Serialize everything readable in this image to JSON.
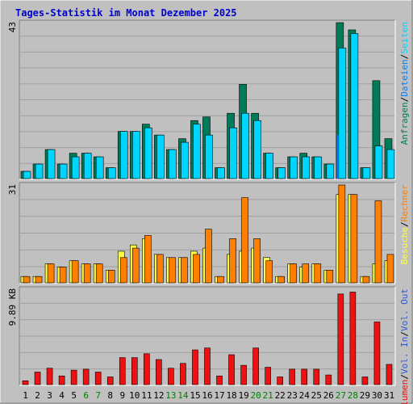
{
  "title": "Tages-Statistik im Monat Dezember 2025",
  "colors": {
    "background": "#C0C0C0",
    "panel": "#C0C0C0",
    "grid": "#A0A0A0",
    "title": "#0000CC",
    "hits": "#007B5A",
    "files": "#00D5FF",
    "pages": "#007FFF",
    "visits": "#FFFF3F",
    "sites": "#FF7F00",
    "volume": "#EE1111",
    "volin": "#2E5BD8",
    "volout": "#2E5BD8",
    "weekend": "#008000",
    "axis_text": "#000000"
  },
  "chart_data": [
    {
      "type": "bar",
      "panel": "top",
      "ymax_label": "43",
      "ylim": [
        0,
        43
      ],
      "legend": [
        {
          "label": "Anfragen",
          "color_key": "hits"
        },
        {
          "label": "/",
          "color_key": "axis_text"
        },
        {
          "label": "Dateien",
          "color_key": "pages"
        },
        {
          "label": "/",
          "color_key": "axis_text"
        },
        {
          "label": "Seiten",
          "color_key": "files"
        }
      ],
      "categories": [
        "1",
        "2",
        "3",
        "4",
        "5",
        "6",
        "7",
        "8",
        "9",
        "10",
        "11",
        "12",
        "13",
        "14",
        "15",
        "16",
        "17",
        "18",
        "19",
        "20",
        "21",
        "22",
        "23",
        "24",
        "25",
        "26",
        "27",
        "28",
        "29",
        "30",
        "31"
      ],
      "series": [
        {
          "name": "Anfragen",
          "color_key": "hits",
          "values": [
            2,
            4,
            8,
            4,
            7,
            7,
            6,
            3,
            13,
            13,
            15,
            12,
            8,
            11,
            16,
            17,
            3,
            18,
            26,
            18,
            7,
            3,
            6,
            7,
            6,
            4,
            43,
            41,
            3,
            27,
            11
          ]
        },
        {
          "name": "Dateien",
          "color_key": "files",
          "values": [
            2,
            4,
            8,
            4,
            6,
            7,
            6,
            3,
            13,
            13,
            14,
            12,
            8,
            10,
            15,
            12,
            3,
            14,
            18,
            16,
            7,
            3,
            6,
            6,
            6,
            4,
            36,
            40,
            3,
            9,
            8
          ]
        },
        {
          "name": "Seiten",
          "color_key": "pages",
          "values": [
            0,
            0,
            0,
            0,
            0,
            0,
            0,
            0,
            0,
            0,
            0,
            0,
            0,
            0,
            0,
            0,
            0,
            0,
            0,
            0,
            0,
            0,
            0,
            0,
            0,
            0,
            12,
            0,
            0,
            0,
            0
          ]
        }
      ]
    },
    {
      "type": "bar",
      "panel": "middle",
      "ymax_label": "31",
      "ylim": [
        0,
        31
      ],
      "legend": [
        {
          "label": "Besuche",
          "color_key": "visits"
        },
        {
          "label": "/",
          "color_key": "axis_text"
        },
        {
          "label": "Rechner",
          "color_key": "sites"
        }
      ],
      "categories": [
        "1",
        "2",
        "3",
        "4",
        "5",
        "6",
        "7",
        "8",
        "9",
        "10",
        "11",
        "12",
        "13",
        "14",
        "15",
        "16",
        "17",
        "18",
        "19",
        "20",
        "21",
        "22",
        "23",
        "24",
        "25",
        "26",
        "27",
        "28",
        "29",
        "30",
        "31"
      ],
      "series": [
        {
          "name": "Besuche",
          "color_key": "visits",
          "values": [
            2,
            2,
            6,
            5,
            7,
            6,
            6,
            4,
            10,
            12,
            14,
            9,
            8,
            8,
            10,
            11,
            2,
            9,
            10,
            11,
            8,
            2,
            6,
            5,
            6,
            4,
            28,
            28,
            2,
            6,
            7
          ]
        },
        {
          "name": "Rechner",
          "color_key": "sites",
          "values": [
            2,
            2,
            6,
            5,
            7,
            6,
            6,
            4,
            8,
            11,
            15,
            9,
            8,
            8,
            9,
            17,
            2,
            14,
            27,
            14,
            7,
            2,
            6,
            6,
            6,
            4,
            31,
            28,
            2,
            26,
            9
          ]
        }
      ]
    },
    {
      "type": "bar",
      "panel": "bottom",
      "ymax_label": "9.89 KB",
      "ylim": [
        0,
        9.89
      ],
      "legend": [
        {
          "label": "Volumen",
          "color_key": "volume"
        },
        {
          "label": "/",
          "color_key": "axis_text"
        },
        {
          "label": "Vol. In",
          "color_key": "volin"
        },
        {
          "label": "/",
          "color_key": "axis_text"
        },
        {
          "label": "Vol. Out",
          "color_key": "volout"
        }
      ],
      "categories": [
        "1",
        "2",
        "3",
        "4",
        "5",
        "6",
        "7",
        "8",
        "9",
        "10",
        "11",
        "12",
        "13",
        "14",
        "15",
        "16",
        "17",
        "18",
        "19",
        "20",
        "21",
        "22",
        "23",
        "24",
        "25",
        "26",
        "27",
        "28",
        "29",
        "30",
        "31"
      ],
      "series": [
        {
          "name": "Volumen",
          "color_key": "volume",
          "values": [
            0.4,
            1.3,
            1.7,
            0.9,
            1.5,
            1.6,
            1.3,
            0.8,
            2.8,
            2.8,
            3.2,
            2.6,
            1.7,
            2.2,
            3.6,
            3.8,
            0.9,
            3.1,
            2.0,
            3.8,
            1.8,
            0.8,
            1.6,
            1.6,
            1.6,
            1.0,
            9.4,
            9.6,
            0.8,
            6.5,
            2.1
          ]
        }
      ]
    }
  ],
  "x_axis": {
    "labels": [
      "1",
      "2",
      "3",
      "4",
      "5",
      "6",
      "7",
      "8",
      "9",
      "10",
      "11",
      "12",
      "13",
      "14",
      "15",
      "16",
      "17",
      "18",
      "19",
      "20",
      "21",
      "22",
      "23",
      "24",
      "25",
      "26",
      "27",
      "28",
      "29",
      "30",
      "31"
    ],
    "weekend_indices": [
      5,
      6,
      12,
      13,
      19,
      20,
      26,
      27
    ]
  }
}
